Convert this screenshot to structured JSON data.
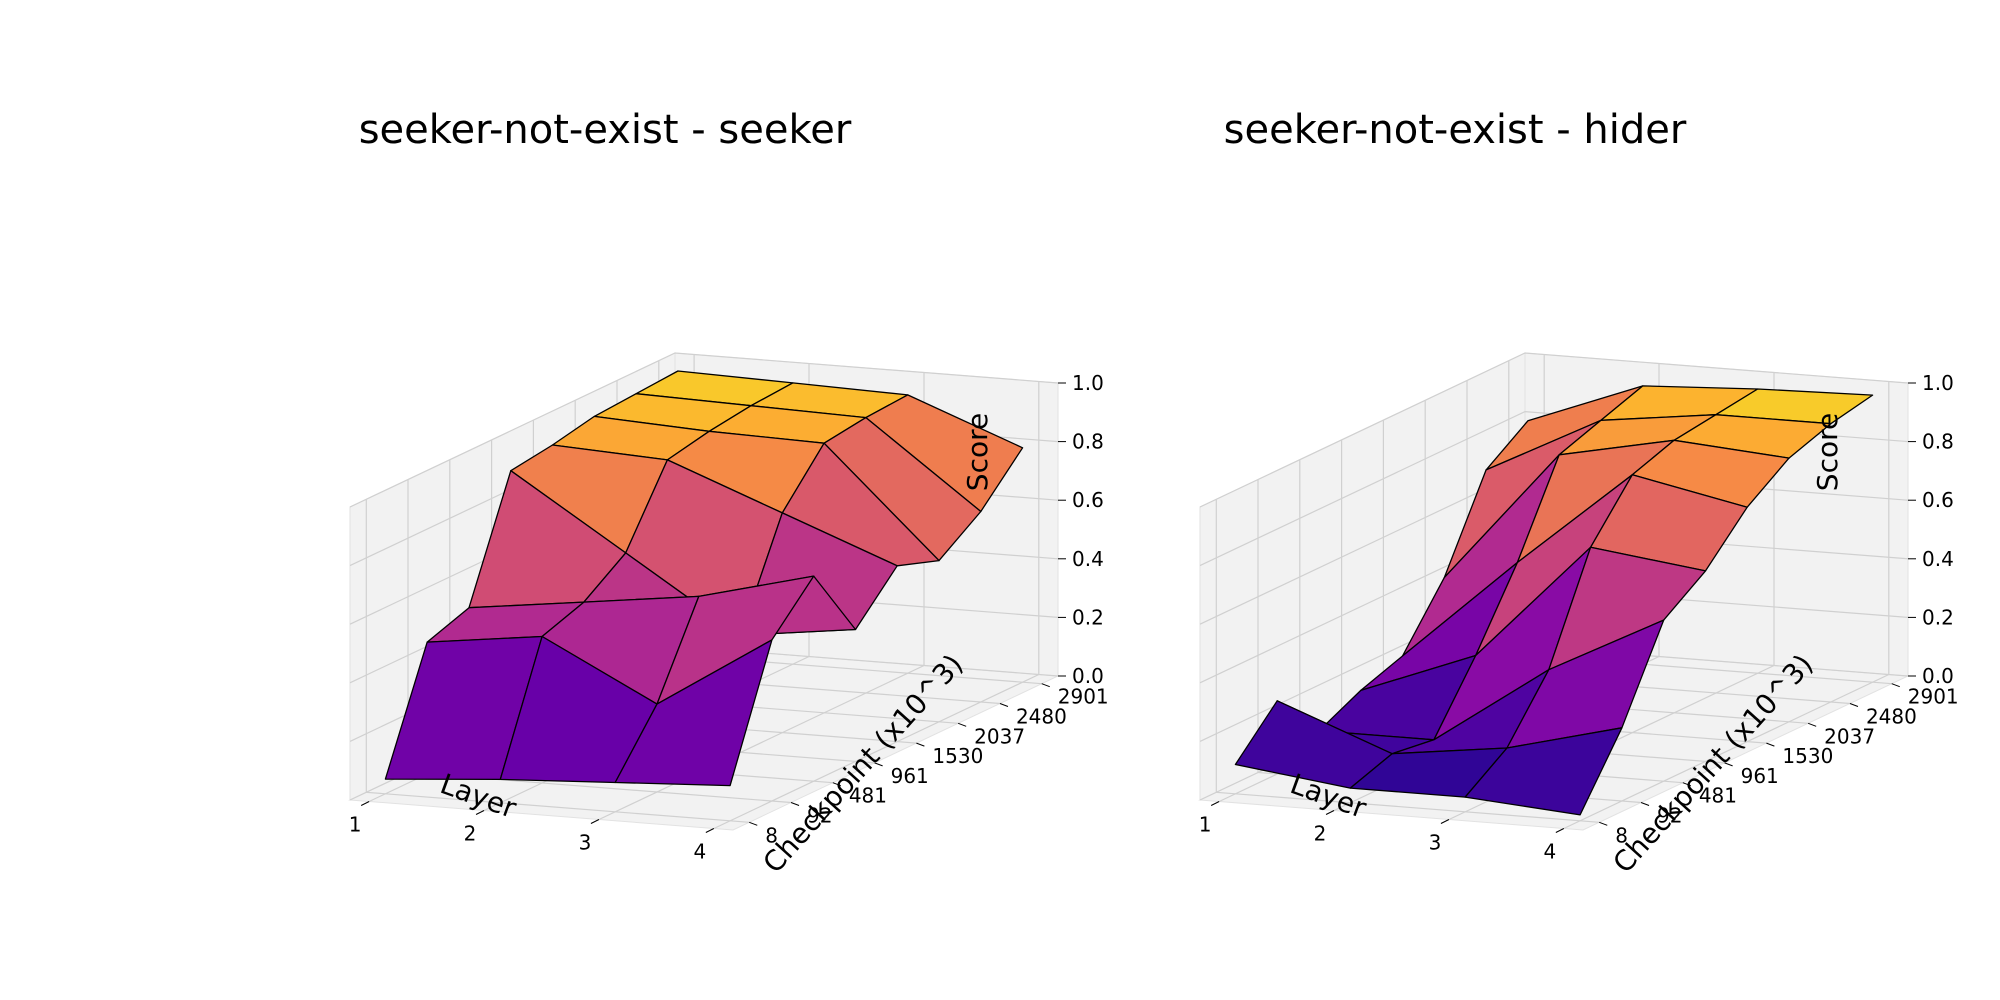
{
  "figure": {
    "background": "#ffffff",
    "pane_color": "#f2f2f2",
    "grid_color": "#d0d0d0",
    "colormap": "plasma"
  },
  "chart_data": [
    {
      "type": "surface3d",
      "title": "seeker-not-exist - seeker",
      "xlabel": "Layer",
      "ylabel": "Checkpoint (x10^3)",
      "zlabel": "Score",
      "x_ticks": [
        "1",
        "2",
        "3",
        "4"
      ],
      "y_ticks": [
        "8",
        "92",
        "481",
        "961",
        "1530",
        "2037",
        "2480",
        "2901"
      ],
      "z_ticks": [
        "0.0",
        "0.2",
        "0.4",
        "0.6",
        "0.8",
        "1.0"
      ],
      "zlim": [
        0,
        1
      ],
      "layers": [
        1,
        2,
        3,
        4
      ],
      "checkpoints": [
        8,
        92,
        481,
        961,
        1530,
        2037,
        2480,
        2901
      ],
      "values": [
        [
          0.05,
          0.45,
          0.5,
          0.9,
          0.92,
          0.95,
          0.96,
          0.97
        ],
        [
          0.08,
          0.5,
          0.55,
          0.65,
          0.9,
          0.93,
          0.95,
          0.96
        ],
        [
          0.1,
          0.3,
          0.6,
          0.4,
          0.75,
          0.92,
          0.94,
          0.95
        ],
        [
          0.12,
          0.55,
          0.7,
          0.45,
          0.6,
          0.55,
          0.65,
          0.8
        ]
      ]
    },
    {
      "type": "surface3d",
      "title": "seeker-not-exist - hider",
      "xlabel": "Layer",
      "ylabel": "Checkpoint (x10^3)",
      "zlabel": "Score",
      "x_ticks": [
        "1",
        "2",
        "3",
        "4"
      ],
      "y_ticks": [
        "8",
        "92",
        "481",
        "961",
        "1530",
        "2037",
        "2480",
        "2901"
      ],
      "z_ticks": [
        "0.0",
        "0.2",
        "0.4",
        "0.6",
        "0.8",
        "1.0"
      ],
      "zlim": [
        0,
        1
      ],
      "layers": [
        1,
        2,
        3,
        4
      ],
      "checkpoints": [
        8,
        92,
        481,
        961,
        1530,
        2037,
        2480,
        2901
      ],
      "values": [
        [
          0.1,
          0.25,
          0.08,
          0.15,
          0.2,
          0.4,
          0.7,
          0.8
        ],
        [
          0.05,
          0.1,
          0.08,
          0.3,
          0.55,
          0.85,
          0.9,
          0.95
        ],
        [
          0.05,
          0.15,
          0.35,
          0.7,
          0.88,
          0.93,
          0.95,
          0.97
        ],
        [
          0.02,
          0.25,
          0.55,
          0.65,
          0.8,
          0.9,
          0.95,
          0.98
        ]
      ]
    }
  ]
}
